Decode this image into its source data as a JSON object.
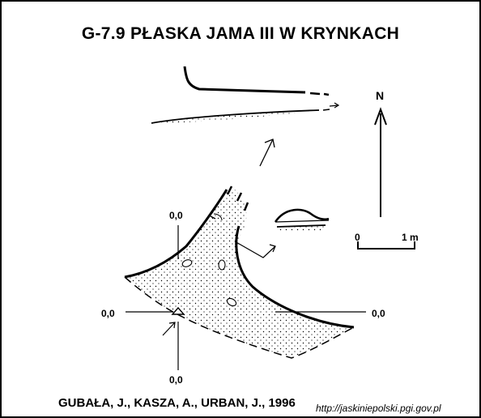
{
  "title": "G-7.9  PŁASKA JAMA III W KRYNKACH",
  "authors": "GUBAŁA, J., KASZA, A., URBAN, J., 1996",
  "source_url": "http://jaskiniepolski.pgi.gov.pl",
  "north_label": "N",
  "scale": {
    "start_label": "0",
    "end_label": "1 m"
  },
  "section_labels": {
    "top": "0,0",
    "left": "0,0",
    "right": "0,0",
    "bottom": "0,0"
  }
}
